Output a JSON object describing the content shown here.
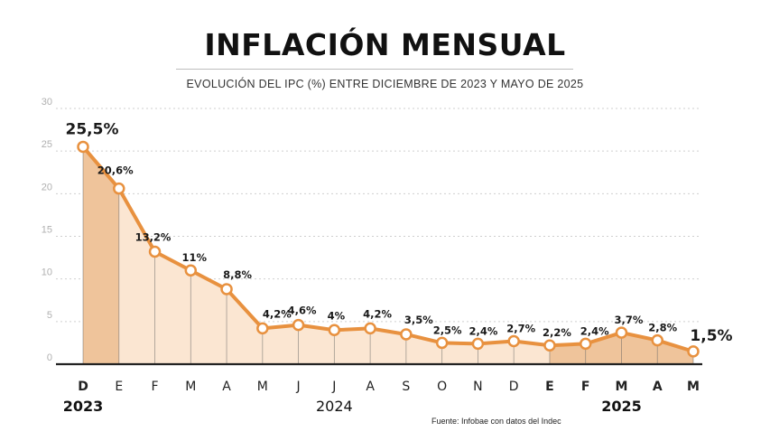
{
  "title": "INFLACIÓN MENSUAL",
  "subtitle": "EVOLUCIÓN DEL IPC (%) ENTRE DICIEMBRE DE 2023 Y MAYO DE 2025",
  "source": "Fuente: Infobae con datos del Indec",
  "colors": {
    "line": "#e8913f",
    "fill_light": "#fbe6d2",
    "fill_dark": "#efc49b",
    "grid": "#cfcfcf",
    "axis": "#222222"
  },
  "chart_data": {
    "type": "area",
    "categories": [
      "D",
      "E",
      "F",
      "M",
      "A",
      "M",
      "J",
      "J",
      "A",
      "S",
      "O",
      "N",
      "D",
      "E",
      "F",
      "M",
      "A",
      "M"
    ],
    "values": [
      25.5,
      20.6,
      13.2,
      11,
      8.8,
      4.2,
      4.6,
      4,
      4.2,
      3.5,
      2.5,
      2.4,
      2.7,
      2.2,
      2.4,
      3.7,
      2.8,
      1.5
    ],
    "data_labels": [
      "25,5%",
      "20,6%",
      "13,2%",
      "11%",
      "8,8%",
      "4,2%",
      "4,6%",
      "4%",
      "4,2%",
      "3,5%",
      "2,5%",
      "2,4%",
      "2,7%",
      "2,2%",
      "2,4%",
      "3,7%",
      "2,8%",
      "1,5%"
    ],
    "year_labels": [
      {
        "text": "2023",
        "at_index": 0
      },
      {
        "text": "2024",
        "at_index": 7
      },
      {
        "text": "2025",
        "at_index": 15
      }
    ],
    "ylim": [
      0,
      30
    ],
    "yticks": [
      0,
      5,
      10,
      15,
      20,
      25,
      30
    ],
    "grid": true,
    "xlabel": "",
    "ylabel": ""
  }
}
